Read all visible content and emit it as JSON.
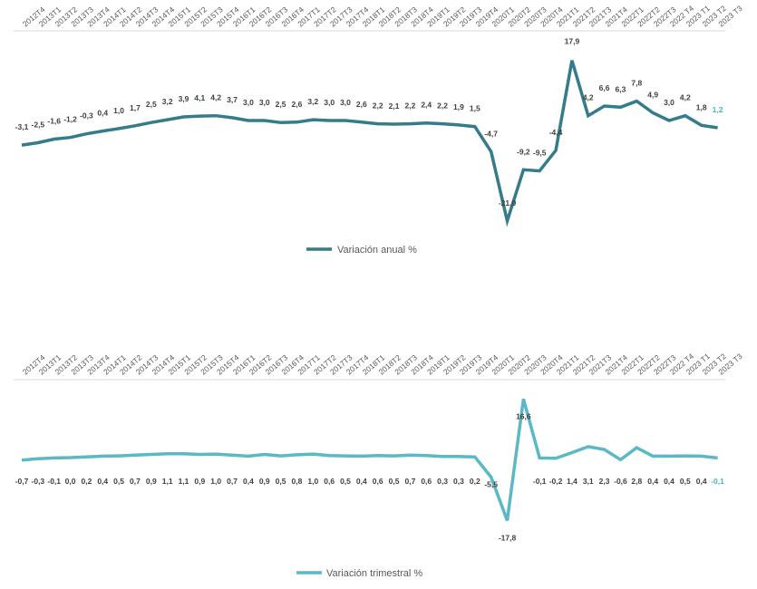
{
  "chart_data": [
    {
      "type": "line",
      "categories": [
        "2012T4",
        "2013T1",
        "2013T2",
        "2013T3",
        "2013T4",
        "2014T1",
        "2014T2",
        "2014T3",
        "2014T4",
        "2015T1",
        "2015T2",
        "2015T3",
        "2015T4",
        "2016T1",
        "2016T2",
        "2016T3",
        "2016T4",
        "2017T1",
        "2017T2",
        "2017T3",
        "2017T4",
        "2018T1",
        "2018T2",
        "2018T3",
        "2018T4",
        "2019T1",
        "2019T2",
        "2019T3",
        "2019T4",
        "2020T1",
        "2020T2",
        "2020T3",
        "2020T4",
        "2021T1",
        "2021T2",
        "2021T3",
        "2021T4",
        "2022T1",
        "2022T2",
        "2022T3",
        "2022 T4",
        "2023 T1",
        "2023 T2",
        "2023 T3"
      ],
      "tick_labels": [
        "2012T4",
        "2013T1",
        "2013T2",
        "2013T3",
        "2013T4",
        "2014T1",
        "2014T2",
        "2014T3",
        "2014T4",
        "2015T1",
        "2015T2",
        "2015T3",
        "2015T4",
        "2016T1",
        "2016T2",
        "2016T3",
        "2016T4",
        "2017T1",
        "2017T2",
        "2017T3",
        "2017T4",
        "2018T1",
        "2018T2",
        "2018T3",
        "2018T4",
        "2019T1",
        "2019T2",
        "2019T3",
        "2019T4",
        "2020T1",
        "2020T2",
        "2020T3",
        "2020T4",
        "2021T1",
        "2021T2",
        "2021T3",
        "2021T4",
        "2022T1",
        "2022T2",
        "2022T3",
        "2022 T4",
        "2023 T1",
        "2023 T2",
        "2023 T3"
      ],
      "series": [
        {
          "name": "Variación anual %",
          "values": [
            -3.1,
            -2.5,
            -1.6,
            -1.2,
            -0.3,
            0.4,
            1.0,
            1.7,
            2.5,
            3.2,
            3.9,
            4.1,
            4.2,
            3.7,
            3.0,
            3.0,
            2.5,
            2.6,
            3.2,
            3.0,
            3.0,
            2.6,
            2.2,
            2.1,
            2.2,
            2.4,
            2.2,
            1.9,
            1.5,
            -4.7,
            -21.9,
            -9.2,
            -9.5,
            -4.4,
            17.9,
            4.2,
            6.6,
            6.3,
            7.8,
            4.9,
            3.0,
            4.2,
            1.8,
            1.2
          ],
          "data_labels": [
            "-3,1",
            "-2,5",
            "-1,6",
            "-1,2",
            "-0,3",
            "0,4",
            "1,0",
            "1,7",
            "2,5",
            "3,2",
            "3,9",
            "4,1",
            "4,2",
            "3,7",
            "3,0",
            "3,0",
            "2,5",
            "2,6",
            "3,2",
            "3,0",
            "3,0",
            "2,6",
            "2,2",
            "2,1",
            "2,2",
            "2,4",
            "2,2",
            "1,9",
            "1,5",
            "-4,7",
            "-21,9",
            "-9,2",
            "-9,5",
            "-4,4",
            "17,9",
            "4,2",
            "6,6",
            "6,3",
            "7,8",
            "4,9",
            "3,0",
            "4,2",
            "1,8",
            "1,2"
          ],
          "color": "#347c8a",
          "last_label_color": "#4bb3c4"
        }
      ],
      "ylim": [
        -25,
        22
      ],
      "legend_position": "bottom"
    },
    {
      "type": "line",
      "categories": [
        "2012T4",
        "2013T1",
        "2013T2",
        "2013T3",
        "2013T4",
        "2014T1",
        "2014T2",
        "2014T3",
        "2014T4",
        "2015T1",
        "2015T2",
        "2015T3",
        "2015T4",
        "2016T1",
        "2016T2",
        "2016T3",
        "2016T4",
        "2017T1",
        "2017T2",
        "2017T3",
        "2017T4",
        "2018T1",
        "2018T2",
        "2018T3",
        "2018T4",
        "2019T1",
        "2019T2",
        "2019T3",
        "2019T4",
        "2020T1",
        "2020T2",
        "2020T3",
        "2020T4",
        "2021T1",
        "2021T2",
        "2021T3",
        "2021T4",
        "2022T1",
        "2022T2",
        "2022T3",
        "2022 T4",
        "2023 T1",
        "2023 T2",
        "2023 T3"
      ],
      "tick_labels": [
        "2012T4",
        "2013T1",
        "2013T2",
        "2013T3",
        "2013T4",
        "2014T1",
        "2014T2",
        "2014T3",
        "2014T4",
        "2015T1",
        "2015T2",
        "2015T3",
        "2015T4",
        "2016T1",
        "2016T2",
        "2016T3",
        "2016T4",
        "2017T1",
        "2017T2",
        "2017T3",
        "2017T4",
        "2018T1",
        "2018T2",
        "2018T3",
        "2018T4",
        "2019T1",
        "2019T2",
        "2019T3",
        "2019T4",
        "2020T1",
        "2020T2",
        "2020T3",
        "2020T4",
        "2021T1",
        "2021T2",
        "2021T3",
        "2021T4",
        "2022T1",
        "2022T2",
        "2022T3",
        "2022 T4",
        "2023 T1",
        "2023 T2",
        "2023 T3"
      ],
      "series": [
        {
          "name": "Variación trimestral %",
          "values": [
            -0.7,
            -0.3,
            -0.1,
            0.0,
            0.2,
            0.4,
            0.5,
            0.7,
            0.9,
            1.1,
            1.1,
            0.9,
            1.0,
            0.7,
            0.4,
            0.9,
            0.5,
            0.8,
            1.0,
            0.6,
            0.5,
            0.4,
            0.6,
            0.5,
            0.7,
            0.6,
            0.3,
            0.3,
            0.2,
            -5.5,
            -17.8,
            16.6,
            -0.1,
            -0.2,
            1.4,
            3.1,
            2.3,
            -0.6,
            2.8,
            0.4,
            0.4,
            0.5,
            0.4,
            -0.1
          ],
          "data_labels": [
            "-0,7",
            "-0,3",
            "-0,1",
            "0,0",
            "0,2",
            "0,4",
            "0,5",
            "0,7",
            "0,9",
            "1,1",
            "1,1",
            "0,9",
            "1,0",
            "0,7",
            "0,4",
            "0,9",
            "0,5",
            "0,8",
            "1,0",
            "0,6",
            "0,5",
            "0,4",
            "0,6",
            "0,5",
            "0,7",
            "0,6",
            "0,3",
            "0,3",
            "0,2",
            "-5,5",
            "-17,8",
            "16,6",
            "-0,1",
            "-0,2",
            "1,4",
            "3,1",
            "2,3",
            "-0,6",
            "2,8",
            "0,4",
            "0,4",
            "0,5",
            "0,4",
            "-0,1"
          ],
          "color": "#5bb8c6",
          "last_label_color": "#4bb3c4"
        }
      ],
      "ylim": [
        -20,
        18
      ],
      "legend_position": "bottom"
    }
  ]
}
